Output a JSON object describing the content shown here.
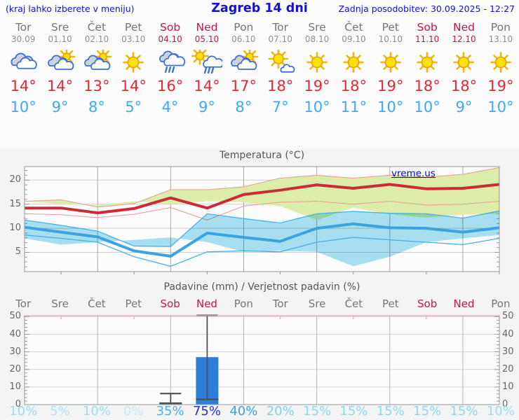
{
  "header": {
    "left_note": "(kraj lahko izberete v meniju)",
    "title": "Zagreb 14 dni",
    "updated": "Zadnja posodobitev: 30.09.2025 - 12:27"
  },
  "watermark": "vreme.us",
  "colors": {
    "header_blue": "#1212d0",
    "weekend": "#c21556",
    "weekday_gray": "#757575",
    "high_red": "#df2a38",
    "low_blue": "#3fa9f4",
    "temp_high_line": "#cb2b38",
    "temp_high_band": "#dcedaa",
    "temp_high_band_edge": "#e89a94",
    "temp_low_line": "#3ba3e2",
    "temp_low_band": "#a9e1f3",
    "temp_low_band_edge": "#49b0e6",
    "precip_bar": "#2e7fd9",
    "precip_top_border": "#ef9fb5"
  },
  "forecast": {
    "days": [
      {
        "name": "Tor",
        "date": "30.09",
        "weekend": false,
        "icon": "cloudy",
        "high": "14°",
        "low": "10°"
      },
      {
        "name": "Sre",
        "date": "01.10",
        "weekend": false,
        "icon": "partly-cloudy",
        "high": "14°",
        "low": "9°"
      },
      {
        "name": "Čet",
        "date": "02.10",
        "weekend": false,
        "icon": "partly-cloudy",
        "high": "13°",
        "low": "8°"
      },
      {
        "name": "Pet",
        "date": "03.10",
        "weekend": false,
        "icon": "sunny",
        "high": "14°",
        "low": "5°"
      },
      {
        "name": "Sob",
        "date": "04.10",
        "weekend": true,
        "icon": "rain",
        "high": "16°",
        "low": "4°"
      },
      {
        "name": "Ned",
        "date": "05.10",
        "weekend": true,
        "icon": "sun-rain",
        "high": "14°",
        "low": "9°"
      },
      {
        "name": "Pon",
        "date": "06.10",
        "weekend": false,
        "icon": "partly-cloudy",
        "high": "17°",
        "low": "8°"
      },
      {
        "name": "Tor",
        "date": "07.10",
        "weekend": false,
        "icon": "sun-cloud",
        "high": "18°",
        "low": "7°"
      },
      {
        "name": "Sre",
        "date": "08.10",
        "weekend": false,
        "icon": "sunny",
        "high": "19°",
        "low": "10°"
      },
      {
        "name": "Čet",
        "date": "09.10",
        "weekend": false,
        "icon": "sunny",
        "high": "18°",
        "low": "11°"
      },
      {
        "name": "Pet",
        "date": "10.10",
        "weekend": false,
        "icon": "sunny",
        "high": "19°",
        "low": "10°"
      },
      {
        "name": "Sob",
        "date": "11.10",
        "weekend": true,
        "icon": "sunny",
        "high": "18°",
        "low": "10°"
      },
      {
        "name": "Ned",
        "date": "12.10",
        "weekend": true,
        "icon": "sunny",
        "high": "18°",
        "low": "9°"
      },
      {
        "name": "Pon",
        "date": "13.10",
        "weekend": false,
        "icon": "sunny",
        "high": "19°",
        "low": "10°"
      }
    ]
  },
  "chart_data": [
    {
      "type": "line",
      "title": "Temperatura (°C)",
      "x": [
        "30.09",
        "01.10",
        "02.10",
        "03.10",
        "04.10",
        "05.10",
        "06.10",
        "07.10",
        "08.10",
        "09.10",
        "10.10",
        "11.10",
        "12.10",
        "13.10"
      ],
      "ylim": [
        1,
        22.8
      ],
      "yticks": [
        5,
        10,
        15,
        20
      ],
      "grid": "on",
      "legend": "none",
      "watermark": "vreme.us",
      "series": [
        {
          "name": "T max",
          "color": "#cb2b38",
          "values": [
            14.2,
            14.2,
            13.2,
            14.1,
            16.3,
            14.2,
            17,
            17.9,
            19,
            18.3,
            19.1,
            18.2,
            18.3,
            19.1
          ]
        },
        {
          "name": "T max band upper",
          "color": "#dcedaa",
          "values": [
            15.6,
            15.9,
            14.4,
            15.1,
            18,
            18,
            18.6,
            20.4,
            21,
            20.4,
            21,
            20.6,
            21.2,
            22.6
          ]
        },
        {
          "name": "T max band lower",
          "color": "#dcedaa",
          "values": [
            13,
            12.8,
            12.2,
            12.9,
            14.3,
            11.7,
            14.6,
            15.4,
            15.6,
            15,
            15.6,
            14.8,
            15,
            15.6
          ]
        },
        {
          "name": "T min",
          "color": "#3ba3e2",
          "values": [
            10.2,
            9.2,
            8.2,
            5.3,
            4.2,
            9,
            8.1,
            7.3,
            10,
            10.9,
            10.1,
            10,
            9.2,
            10.1
          ]
        },
        {
          "name": "T min band upper",
          "color": "#a9e1f3",
          "values": [
            11.7,
            10.6,
            9.4,
            6.3,
            6.2,
            13,
            12,
            11.1,
            13,
            13.5,
            13.1,
            13,
            12.1,
            13.6
          ]
        },
        {
          "name": "T min band lower",
          "color": "#a9e1f3",
          "values": [
            8.6,
            7.9,
            7.1,
            4.1,
            2.1,
            5.1,
            5.3,
            5.1,
            7.1,
            8.1,
            7.6,
            7.1,
            6.6,
            7.9
          ]
        }
      ]
    },
    {
      "type": "bar",
      "title": "Padavine (mm) / Verjetnost padavin (%)",
      "categories": [
        "Tor",
        "Sre",
        "Čet",
        "Pet",
        "Sob",
        "Ned",
        "Pon",
        "Tor",
        "Sre",
        "Čet",
        "Pet",
        "Sob",
        "Ned",
        "Pon"
      ],
      "weekend_flags": [
        false,
        false,
        false,
        false,
        true,
        true,
        false,
        false,
        false,
        false,
        false,
        true,
        true,
        false
      ],
      "values_mm": [
        0,
        0,
        0,
        0,
        1.2,
        27,
        0,
        0,
        0,
        0,
        0,
        0,
        0,
        0
      ],
      "whiskers": [
        null,
        null,
        null,
        null,
        {
          "low": 0.8,
          "high": 6.3
        },
        {
          "low": 3,
          "high": 50.7
        },
        null,
        null,
        null,
        null,
        null,
        null,
        null,
        null
      ],
      "probabilities": [
        "10%",
        "5%",
        "10%",
        "0%",
        "35%",
        "75%",
        "40%",
        "20%",
        "15%",
        "15%",
        "15%",
        "15%",
        "15%",
        "10%"
      ],
      "probability_colors": [
        "#9ddcf3",
        "#b2e4f5",
        "#9ddcf3",
        "#c7ebf7",
        "#4cb0ea",
        "#2433cf",
        "#3d9fe8",
        "#7fd2ef",
        "#8fd8f1",
        "#8fd8f1",
        "#8fd8f1",
        "#8fd8f1",
        "#8fd8f1",
        "#9ddcf3"
      ],
      "ylim": [
        0,
        50.6
      ],
      "yticks": [
        0,
        10,
        20,
        30,
        40,
        50
      ],
      "bar_color": "#2e7fd9"
    }
  ]
}
